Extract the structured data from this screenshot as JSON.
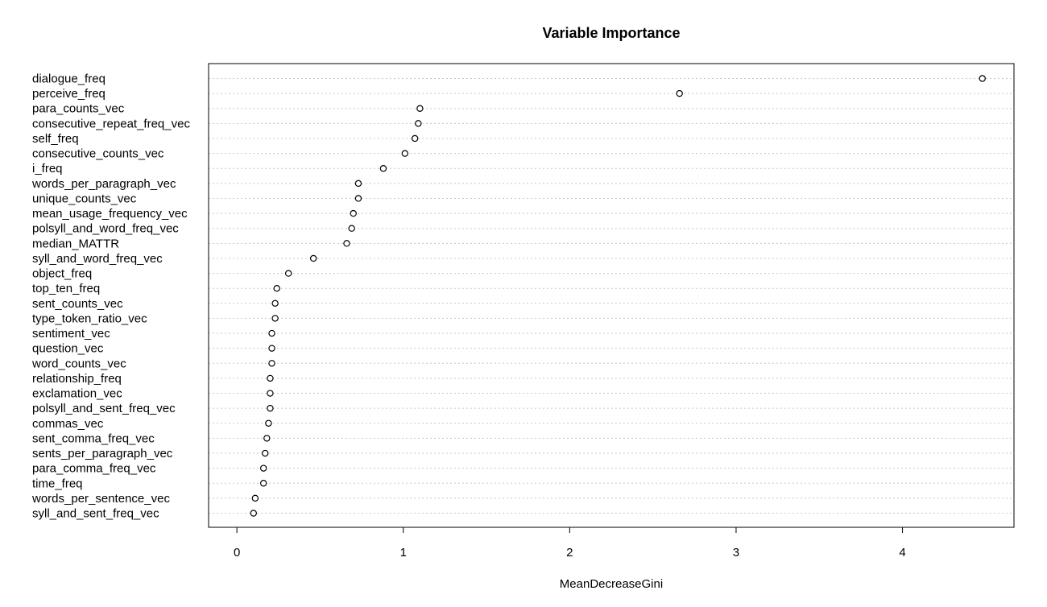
{
  "chart_data": {
    "type": "dotchart",
    "title": "Variable Importance",
    "xlabel": "MeanDecreaseGini",
    "ylabel": "",
    "xlim": [
      -0.17,
      4.67
    ],
    "xticks": [
      0,
      1,
      2,
      3,
      4
    ],
    "grid": "dotted horizontal lines per category",
    "categories": [
      "dialogue_freq",
      "perceive_freq",
      "para_counts_vec",
      "consecutive_repeat_freq_vec",
      "self_freq",
      "consecutive_counts_vec",
      "i_freq",
      "words_per_paragraph_vec",
      "unique_counts_vec",
      "mean_usage_frequency_vec",
      "polsyll_and_word_freq_vec",
      "median_MATTR",
      "syll_and_word_freq_vec",
      "object_freq",
      "top_ten_freq",
      "sent_counts_vec",
      "type_token_ratio_vec",
      "sentiment_vec",
      "question_vec",
      "word_counts_vec",
      "relationship_freq",
      "exclamation_vec",
      "polsyll_and_sent_freq_vec",
      "commas_vec",
      "sent_comma_freq_vec",
      "sents_per_paragraph_vec",
      "para_comma_freq_vec",
      "time_freq",
      "words_per_sentence_vec",
      "syll_and_sent_freq_vec"
    ],
    "values": [
      4.48,
      2.66,
      1.1,
      1.09,
      1.07,
      1.01,
      0.88,
      0.73,
      0.73,
      0.7,
      0.69,
      0.66,
      0.46,
      0.31,
      0.24,
      0.23,
      0.23,
      0.21,
      0.21,
      0.21,
      0.2,
      0.2,
      0.2,
      0.19,
      0.18,
      0.17,
      0.16,
      0.16,
      0.11,
      0.1
    ]
  }
}
